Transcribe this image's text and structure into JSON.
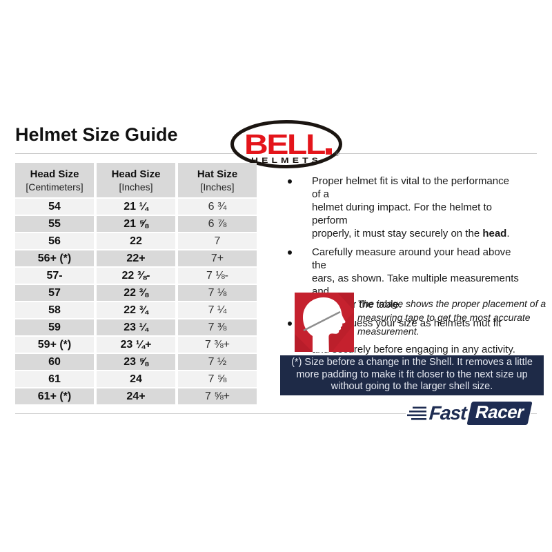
{
  "title": "Helmet Size Guide",
  "bell": {
    "name": "BELL",
    "sub": "HELMETS",
    "reg": "®"
  },
  "table": {
    "headers": [
      {
        "title": "Head Size",
        "unit": "[Centimeters]"
      },
      {
        "title": "Head Size",
        "unit": "[Inches]"
      },
      {
        "title": "Hat Size",
        "unit": "[Inches]"
      }
    ],
    "rows": [
      [
        "54",
        "21 ¼",
        "6 ¾"
      ],
      [
        "55",
        "21 ⅝",
        "6 ⅞"
      ],
      [
        "56",
        "22",
        "7"
      ],
      [
        "56+ (*)",
        "22+",
        "7+"
      ],
      [
        "57-",
        "22 ⅜-",
        "7 ⅛-"
      ],
      [
        "57",
        "22 ⅜",
        "7 ⅛"
      ],
      [
        "58",
        "22 ¾",
        "7 ¼"
      ],
      [
        "59",
        "23 ¼",
        "7 ⅜"
      ],
      [
        "59+ (*)",
        "23 ¼+",
        "7 ⅜+"
      ],
      [
        "60",
        "23 ⅝",
        "7 ½"
      ],
      [
        "61",
        "24",
        "7 ⅝"
      ],
      [
        "61+ (*)",
        "24+",
        "7 ⅝+"
      ]
    ]
  },
  "bullets": {
    "item1_pre": "Proper helmet fit is vital to the performance of a\nhelmet during impact. For the helmet to perform\nproperly, it must stay securely on the ",
    "item1_bold": "head",
    "item1_post": ".",
    "item2": "Carefully measure around your head above the\nears, as shown. Take multiple measurements and\nthen refer the table.",
    "item3": "Do not guess your size as helmets mut fit snugly\nand securely before engaging in any activity."
  },
  "caption": "The image shows the proper placement of a\nmeasuring tape to get the most accurate\nmeasurement.",
  "note": "(*) Size before a change in the Shell. It removes a little\nmore padding to make it fit closer to the next size up\nwithout going to the larger shell size.",
  "fastracer": {
    "fast": "Fast",
    "racer": "Racer"
  },
  "colors": {
    "bell_red": "#e4151b",
    "figure_red": "#c5212e",
    "navy": "#1e2a47",
    "logo_navy": "#1e2c52",
    "row_light": "#f2f2f2",
    "row_dark": "#d9d9d9",
    "divider_gray": "#cccccc"
  }
}
